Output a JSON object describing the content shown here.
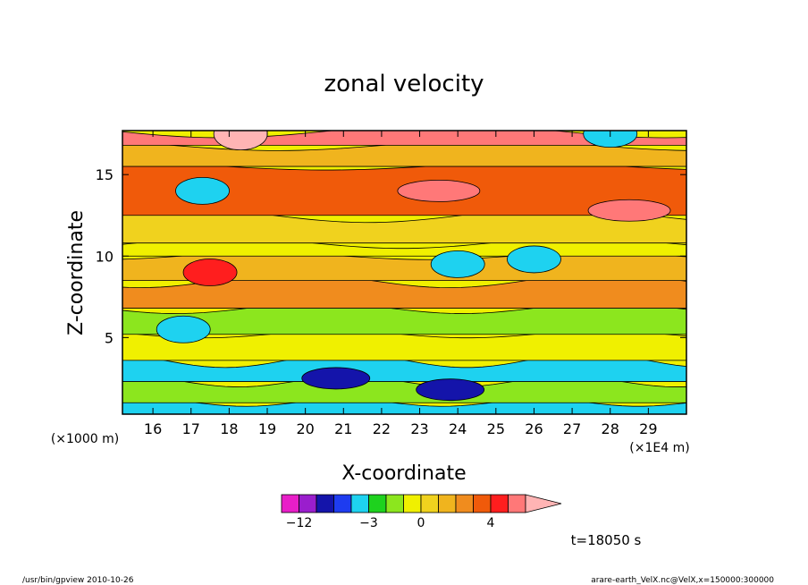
{
  "chart_data": {
    "type": "heatmap",
    "title": "zonal velocity",
    "xlabel": "X-coordinate",
    "ylabel": "Z-coordinate",
    "x_unit_left": "(×1000 m)",
    "x_unit_right": "(×1E4 m)",
    "xlim": [
      15.2,
      30.0
    ],
    "ylim": [
      0.3,
      17.7
    ],
    "x_ticks": [
      "16",
      "17",
      "18",
      "19",
      "20",
      "21",
      "22",
      "23",
      "24",
      "25",
      "26",
      "27",
      "28",
      "29"
    ],
    "y_ticks": [
      "5",
      "10",
      "15"
    ],
    "colorbar": {
      "ticks": [
        "−12",
        "−3",
        "0",
        "4"
      ],
      "levels": [
        -16,
        -12,
        -9,
        -6,
        -4,
        -3,
        -2,
        -1,
        0,
        1,
        2,
        3,
        4,
        6,
        8,
        12
      ],
      "colors": [
        "#e81ec8",
        "#9a1ecd",
        "#1414aa",
        "#1e3cf0",
        "#1ed2f0",
        "#1ed21e",
        "#8ce61e",
        "#f0f000",
        "#f0d21e",
        "#f0b41e",
        "#f08c1e",
        "#f05a0a",
        "#ff1e1e",
        "#ff7878",
        "#ffb4b4"
      ]
    },
    "time_label": "t=18050 s",
    "contour_field": {
      "background": 2,
      "bands": [
        {
          "z": [
            0.3,
            1.0
          ],
          "base": -4
        },
        {
          "z": [
            1.0,
            2.3
          ],
          "base": -2
        },
        {
          "z": [
            2.3,
            3.6
          ],
          "base": -4
        },
        {
          "z": [
            3.6,
            5.2
          ],
          "base": -1
        },
        {
          "z": [
            5.2,
            6.8
          ],
          "base": -2
        },
        {
          "z": [
            6.8,
            8.5
          ],
          "base": 2
        },
        {
          "z": [
            8.5,
            10.0
          ],
          "base": 1
        },
        {
          "z": [
            10.0,
            10.8
          ],
          "base": -1
        },
        {
          "z": [
            10.8,
            12.5
          ],
          "base": 0
        },
        {
          "z": [
            12.5,
            15.5
          ],
          "base": 3
        },
        {
          "z": [
            15.5,
            16.8
          ],
          "base": 1
        },
        {
          "z": [
            16.8,
            17.7
          ],
          "base": 6
        }
      ],
      "blobs": [
        {
          "x": 23.8,
          "z": 1.8,
          "level": -9
        },
        {
          "x": 20.8,
          "z": 2.5,
          "level": -9
        },
        {
          "x": 17.3,
          "z": 14.0,
          "level": -4
        },
        {
          "x": 16.8,
          "z": 5.5,
          "level": -4
        },
        {
          "x": 23.5,
          "z": 14.0,
          "level": 6
        },
        {
          "x": 28.5,
          "z": 12.8,
          "level": 6
        },
        {
          "x": 17.5,
          "z": 9.0,
          "level": 4
        },
        {
          "x": 24.0,
          "z": 9.5,
          "level": -4
        },
        {
          "x": 26.0,
          "z": 9.8,
          "level": -4
        },
        {
          "x": 18.3,
          "z": 17.5,
          "level": 8
        },
        {
          "x": 28.0,
          "z": 17.5,
          "level": -4
        }
      ]
    }
  },
  "footer": {
    "left": "/usr/bin/gpview   2010-10-26",
    "right": "arare-earth_VelX.nc@VelX,x=150000:300000"
  }
}
